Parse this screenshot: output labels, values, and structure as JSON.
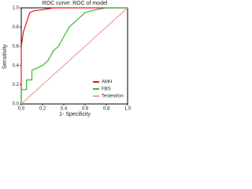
{
  "chart_data": {
    "type": "line",
    "title": "ROC curve: ROC of model",
    "x_label": "1- Specificity",
    "y_label": "Sensitivity",
    "xlim": [
      0,
      1
    ],
    "ylim": [
      0,
      1
    ],
    "xticks": [
      {
        "value": 0,
        "label": "0.0"
      },
      0.2,
      0.4,
      0.6,
      0.8,
      {
        "value": 1,
        "label": "1.0"
      }
    ],
    "yticks": [
      {
        "value": 0,
        "label": "0.0"
      },
      0.2,
      0.4,
      0.6,
      0.8,
      {
        "value": 1,
        "label": "1.0"
      }
    ],
    "legend": "lower right",
    "series": [
      {
        "name": "AMH",
        "color": "#e8141c",
        "x": [
          0,
          0,
          0.02,
          0.05,
          0.08,
          0.12,
          0.2,
          0.3,
          1
        ],
        "values": [
          0,
          0.6,
          0.75,
          0.85,
          0.95,
          0.97,
          0.98,
          1,
          1
        ]
      },
      {
        "name": "FBS",
        "color": "#3cb82e",
        "x": [
          0,
          0,
          0.05,
          0.05,
          0.1,
          0.1,
          0.2,
          0.25,
          0.3,
          0.35,
          0.4,
          0.45,
          0.5,
          0.55,
          0.6,
          0.7,
          0.8,
          1
        ],
        "values": [
          0,
          0.15,
          0.15,
          0.25,
          0.25,
          0.35,
          0.4,
          0.45,
          0.55,
          0.6,
          0.7,
          0.8,
          0.85,
          0.9,
          0.95,
          0.98,
          1,
          1
        ]
      },
      {
        "name": "Testestron",
        "color": "#f0a0a0",
        "x": [
          0,
          1
        ],
        "values": [
          0,
          1
        ]
      }
    ]
  }
}
